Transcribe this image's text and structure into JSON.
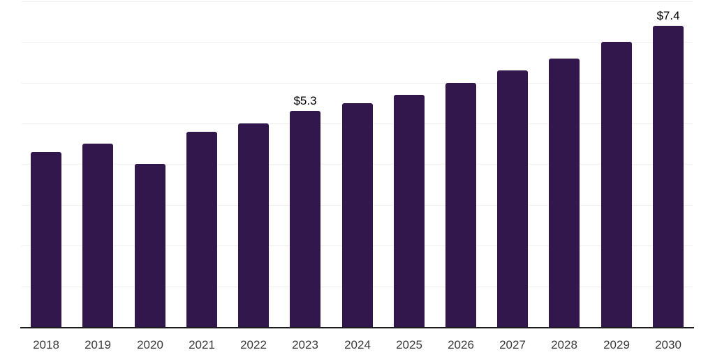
{
  "chart_data": {
    "type": "bar",
    "title": "",
    "xlabel": "",
    "ylabel": "",
    "categories": [
      "2018",
      "2019",
      "2020",
      "2021",
      "2022",
      "2023",
      "2024",
      "2025",
      "2026",
      "2027",
      "2028",
      "2029",
      "2030"
    ],
    "values": [
      4.3,
      4.5,
      4.0,
      4.8,
      5.0,
      5.3,
      5.5,
      5.7,
      6.0,
      6.3,
      6.6,
      7.0,
      7.4
    ],
    "value_labels": {
      "2023": "$5.3",
      "2030": "$7.4"
    },
    "ylim": [
      0,
      8
    ],
    "gridline_values": [
      1,
      2,
      3,
      4,
      5,
      6,
      7,
      8
    ],
    "grid": true,
    "legend": false,
    "colors": {
      "bar": "#32174d",
      "axis_line": "#1c1c1c",
      "gridline": "#f0f0f0",
      "tick_label": "#3a3a3a",
      "value_label": "#000000",
      "background": "#ffffff"
    }
  }
}
